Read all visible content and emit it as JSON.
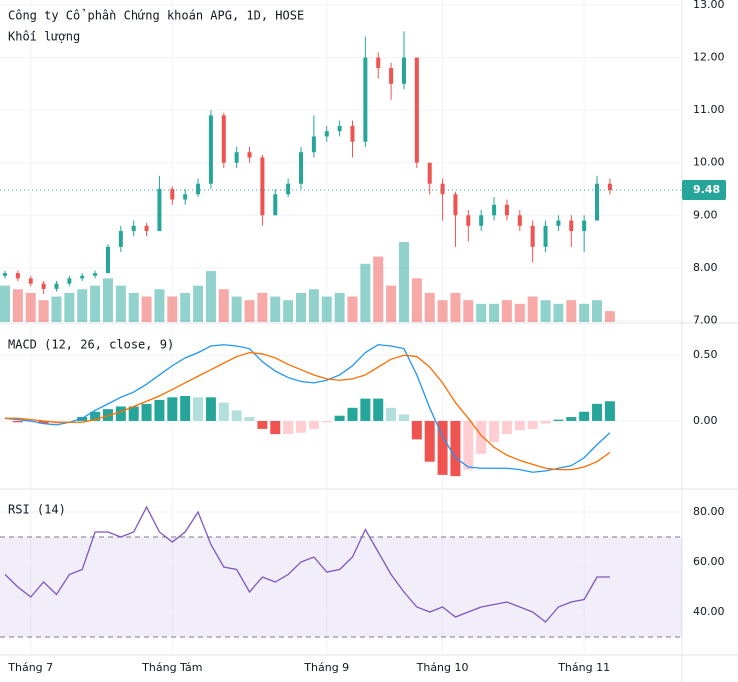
{
  "chart_data": [
    {
      "type": "candlestick",
      "title": "Công ty Cổ phần Chứng khoán APG, 1D, HOSE",
      "volume_title": "Khối lượng",
      "categories": [
        null,
        null,
        "Tháng 7",
        null,
        null,
        null,
        null,
        null,
        null,
        null,
        null,
        null,
        null,
        "Tháng Tám",
        null,
        null,
        null,
        null,
        null,
        null,
        null,
        null,
        null,
        null,
        null,
        "Tháng 9",
        null,
        null,
        null,
        null,
        null,
        null,
        null,
        null,
        "Tháng 10",
        null,
        null,
        null,
        null,
        null,
        null,
        null,
        null,
        null,
        null,
        "Tháng 11",
        null,
        null
      ],
      "open": [
        7.85,
        7.9,
        7.8,
        7.7,
        7.6,
        7.7,
        7.8,
        7.85,
        7.9,
        8.4,
        8.7,
        8.8,
        8.7,
        9.5,
        9.3,
        9.4,
        9.6,
        10.9,
        10.0,
        10.2,
        10.1,
        9.0,
        9.4,
        9.6,
        10.2,
        10.5,
        10.6,
        10.7,
        10.4,
        12.0,
        11.8,
        11.5,
        12.0,
        10.0,
        9.6,
        9.4,
        9.0,
        8.8,
        9.0,
        9.2,
        9.0,
        8.8,
        8.4,
        8.8,
        8.9,
        8.7,
        8.9,
        9.6
      ],
      "high": [
        7.95,
        7.95,
        7.85,
        7.75,
        7.75,
        7.85,
        7.9,
        7.95,
        8.45,
        8.8,
        8.9,
        8.85,
        9.75,
        9.55,
        9.5,
        9.7,
        11.0,
        10.95,
        10.3,
        10.3,
        10.15,
        9.5,
        9.7,
        10.3,
        10.9,
        10.7,
        10.8,
        10.8,
        12.4,
        12.1,
        11.9,
        12.5,
        12.0,
        10.0,
        9.7,
        9.45,
        9.1,
        9.1,
        9.35,
        9.3,
        9.1,
        8.9,
        8.9,
        9.0,
        9.0,
        9.0,
        9.75,
        9.7
      ],
      "low": [
        7.8,
        7.75,
        7.65,
        7.5,
        7.55,
        7.65,
        7.75,
        7.8,
        7.9,
        8.3,
        8.6,
        8.6,
        8.7,
        9.2,
        9.2,
        9.35,
        9.5,
        9.9,
        9.9,
        10.0,
        8.8,
        9.0,
        9.35,
        9.5,
        10.1,
        10.4,
        10.5,
        10.1,
        10.3,
        11.6,
        11.2,
        11.4,
        9.9,
        9.4,
        8.9,
        8.4,
        8.5,
        8.7,
        8.9,
        8.9,
        8.7,
        8.1,
        8.3,
        8.7,
        8.4,
        8.3,
        8.9,
        9.4
      ],
      "close": [
        7.9,
        7.8,
        7.7,
        7.6,
        7.7,
        7.8,
        7.85,
        7.9,
        8.4,
        8.7,
        8.8,
        8.7,
        9.5,
        9.3,
        9.4,
        9.6,
        10.9,
        10.0,
        10.2,
        10.1,
        9.0,
        9.4,
        9.6,
        10.2,
        10.5,
        10.6,
        10.7,
        10.4,
        12.0,
        11.8,
        11.5,
        12.0,
        10.0,
        9.6,
        9.4,
        9.0,
        8.8,
        9.0,
        9.2,
        9.0,
        8.8,
        8.4,
        8.8,
        8.9,
        8.7,
        8.9,
        9.6,
        9.48
      ],
      "volume": [
        10,
        9,
        8,
        6,
        7,
        8,
        9,
        10,
        12,
        10,
        8,
        7,
        9,
        7,
        8,
        10,
        14,
        9,
        7,
        6,
        8,
        7,
        6,
        8,
        9,
        7,
        8,
        7,
        16,
        18,
        10,
        22,
        12,
        8,
        6,
        8,
        6,
        5,
        5,
        6,
        5,
        7,
        6,
        5,
        6,
        5,
        6,
        3
      ],
      "up_color": "#26a69a",
      "down_color": "#ef5350",
      "ylim": [
        6.97,
        13.05
      ],
      "yticks": [
        {
          "value": 7,
          "label": "7.00"
        },
        {
          "value": 8,
          "label": "8.00"
        },
        {
          "value": 9,
          "label": "9.00"
        },
        {
          "value": 10,
          "label": "10.00"
        },
        {
          "value": 11,
          "label": "11.00"
        },
        {
          "value": 12,
          "label": "12.00"
        },
        {
          "value": 13,
          "label": "13.00"
        }
      ]
    },
    {
      "type": "macd",
      "title": "MACD (12, 26, close, 9)",
      "series": [
        {
          "name": "MACD",
          "color": "#2196f3",
          "values": [
            0.02,
            0.01,
            0.0,
            -0.02,
            -0.03,
            -0.01,
            0.02,
            0.08,
            0.13,
            0.18,
            0.22,
            0.28,
            0.35,
            0.42,
            0.48,
            0.52,
            0.57,
            0.58,
            0.57,
            0.55,
            0.45,
            0.38,
            0.33,
            0.3,
            0.29,
            0.31,
            0.35,
            0.42,
            0.52,
            0.58,
            0.57,
            0.55,
            0.35,
            0.1,
            -0.12,
            -0.28,
            -0.35,
            -0.36,
            -0.36,
            -0.36,
            -0.37,
            -0.39,
            -0.38,
            -0.36,
            -0.34,
            -0.28,
            -0.18,
            -0.09
          ]
        },
        {
          "name": "Signal",
          "color": "#ff6d00",
          "values": [
            0.02,
            0.02,
            0.01,
            0.0,
            -0.01,
            -0.01,
            -0.01,
            0.01,
            0.04,
            0.07,
            0.11,
            0.15,
            0.19,
            0.24,
            0.29,
            0.34,
            0.39,
            0.44,
            0.49,
            0.52,
            0.51,
            0.48,
            0.43,
            0.39,
            0.35,
            0.32,
            0.31,
            0.32,
            0.35,
            0.41,
            0.47,
            0.5,
            0.49,
            0.41,
            0.29,
            0.14,
            0.02,
            -0.11,
            -0.2,
            -0.26,
            -0.3,
            -0.33,
            -0.36,
            -0.37,
            -0.37,
            -0.35,
            -0.31,
            -0.24
          ]
        }
      ],
      "histogram": [
        0,
        -0.01,
        -0.01,
        -0.02,
        -0.02,
        0,
        0.03,
        0.07,
        0.09,
        0.11,
        0.11,
        0.13,
        0.16,
        0.18,
        0.19,
        0.18,
        0.18,
        0.14,
        0.08,
        0.03,
        -0.06,
        -0.1,
        -0.1,
        -0.09,
        -0.06,
        -0.01,
        0.04,
        0.1,
        0.17,
        0.17,
        0.1,
        0.05,
        -0.14,
        -0.31,
        -0.41,
        -0.42,
        -0.37,
        -0.25,
        -0.16,
        -0.1,
        -0.07,
        -0.06,
        -0.02,
        0.01,
        0.03,
        0.07,
        0.13,
        0.15
      ],
      "histogram_colors": [
        "#26a69a",
        "#b2dfdb",
        "#ffcdd2",
        "#ef5350"
      ],
      "ylim": [
        -0.51,
        0.73
      ],
      "yticks": [
        {
          "value": 0,
          "label": "0.00"
        },
        {
          "value": 0.5,
          "label": "0.50"
        }
      ]
    },
    {
      "type": "rsi",
      "title": "RSI (14)",
      "values": [
        55,
        50,
        46,
        52,
        47,
        55,
        57,
        72,
        72,
        70,
        72,
        82,
        72,
        68,
        72,
        80,
        67,
        58,
        57,
        48,
        54,
        52,
        55,
        60,
        62,
        56,
        57,
        62,
        73,
        64,
        55,
        48,
        42,
        40,
        42,
        38,
        40,
        42,
        43,
        44,
        42,
        40,
        36,
        42,
        44,
        45,
        54,
        54
      ],
      "color": "#7e57c2",
      "bands": [
        30,
        70
      ],
      "ylim": [
        22.8,
        88.8
      ],
      "yticks": [
        {
          "value": 40,
          "label": "40.00"
        },
        {
          "value": 60,
          "label": "60.00"
        },
        {
          "value": 80,
          "label": "80.00"
        }
      ]
    }
  ]
}
